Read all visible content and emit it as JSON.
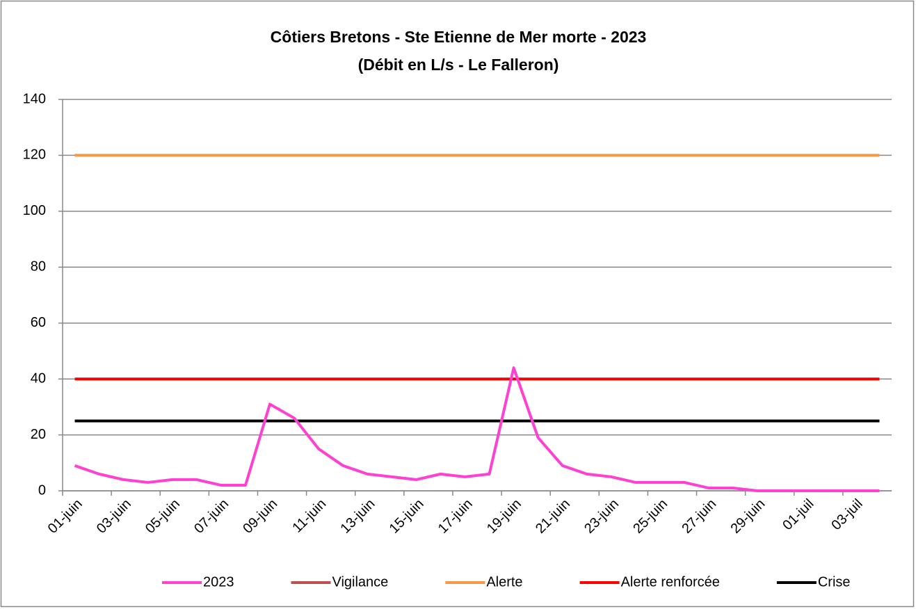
{
  "chart_data": {
    "type": "line",
    "title": "Côtiers Bretons - Ste Etienne de Mer morte - 2023",
    "subtitle": "(Débit en L/s - Le Falleron)",
    "categories": [
      "01-juin",
      null,
      "03-juin",
      null,
      "05-juin",
      null,
      "07-juin",
      null,
      "09-juin",
      null,
      "11-juin",
      null,
      "13-juin",
      null,
      "15-juin",
      null,
      "17-juin",
      null,
      "19-juin",
      null,
      "21-juin",
      null,
      "23-juin",
      null,
      "25-juin",
      null,
      "27-juin",
      null,
      "29-juin",
      null,
      "01-juil",
      null,
      "03-juil",
      null
    ],
    "series": [
      {
        "name": "2023",
        "color": "#ff40d0",
        "values": [
          9,
          6,
          4,
          3,
          4,
          4,
          2,
          2,
          31,
          26,
          15,
          9,
          6,
          5,
          4,
          6,
          5,
          6,
          44,
          19,
          9,
          6,
          5,
          3,
          3,
          3,
          1,
          1,
          0,
          0,
          0,
          0,
          0,
          0
        ]
      },
      {
        "name": "Vigilance",
        "color": "#c0504d",
        "values": [
          null,
          null,
          null,
          null,
          null,
          null,
          null,
          null,
          null,
          null,
          null,
          null,
          null,
          null,
          null,
          null,
          null,
          null,
          null,
          null,
          null,
          null,
          null,
          null,
          null,
          null,
          null,
          null,
          null,
          null,
          null,
          null,
          null,
          null
        ]
      },
      {
        "name": "Alerte",
        "color": "#f79646",
        "values": [
          120,
          120,
          120,
          120,
          120,
          120,
          120,
          120,
          120,
          120,
          120,
          120,
          120,
          120,
          120,
          120,
          120,
          120,
          120,
          120,
          120,
          120,
          120,
          120,
          120,
          120,
          120,
          120,
          120,
          120,
          120,
          120,
          120,
          120
        ]
      },
      {
        "name": "Alerte renforcée",
        "color": "#ff0000",
        "values": [
          40,
          40,
          40,
          40,
          40,
          40,
          40,
          40,
          40,
          40,
          40,
          40,
          40,
          40,
          40,
          40,
          40,
          40,
          40,
          40,
          40,
          40,
          40,
          40,
          40,
          40,
          40,
          40,
          40,
          40,
          40,
          40,
          40,
          40
        ]
      },
      {
        "name": "Crise",
        "color": "#000000",
        "values": [
          25,
          25,
          25,
          25,
          25,
          25,
          25,
          25,
          25,
          25,
          25,
          25,
          25,
          25,
          25,
          25,
          25,
          25,
          25,
          25,
          25,
          25,
          25,
          25,
          25,
          25,
          25,
          25,
          25,
          25,
          25,
          25,
          25,
          25
        ]
      }
    ],
    "ylim": [
      0,
      140
    ],
    "yticks": [
      0,
      20,
      40,
      60,
      80,
      100,
      120,
      140
    ],
    "grid": true,
    "legend": "bottom"
  }
}
